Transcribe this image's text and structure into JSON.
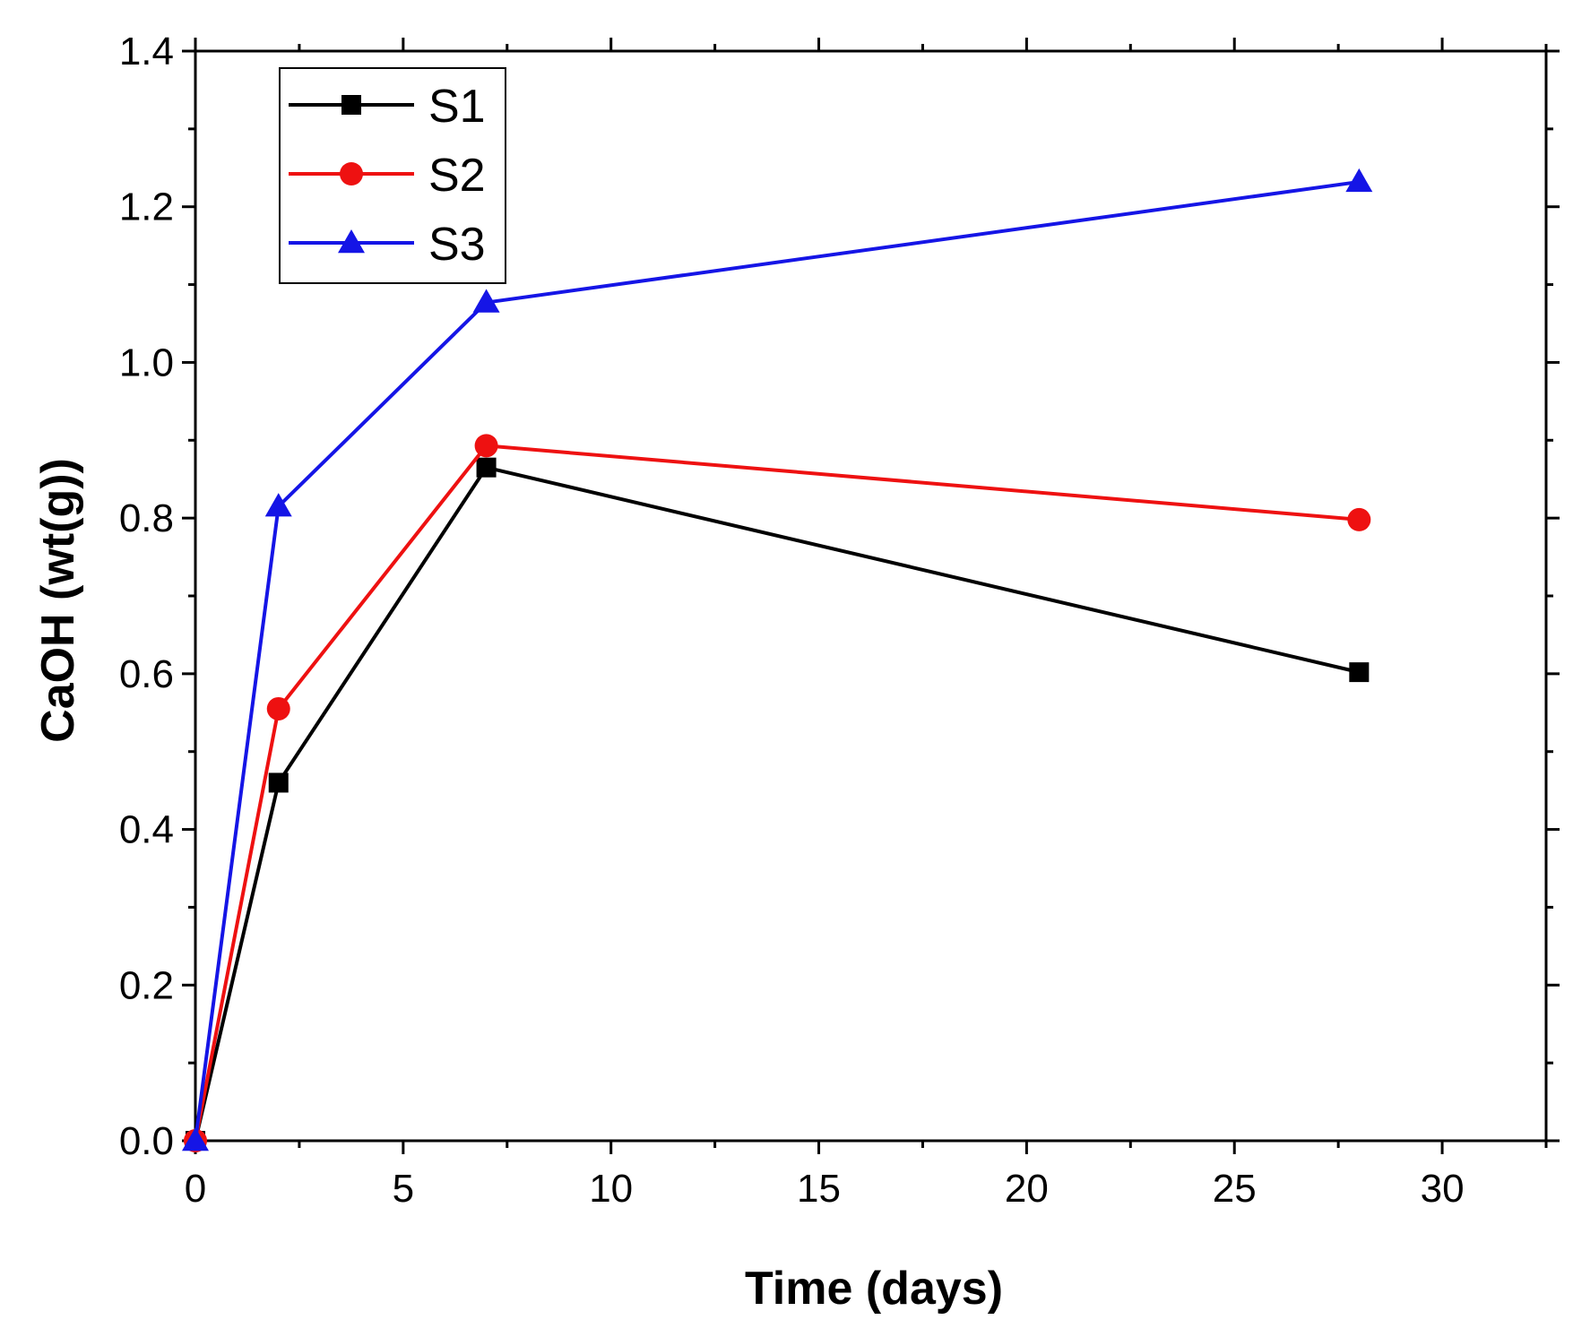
{
  "chart_data": {
    "type": "line",
    "title": "",
    "xlabel": "Time (days)",
    "ylabel": "CaOH (wt(g))",
    "xlim": [
      0,
      32.5
    ],
    "ylim": [
      0,
      1.4
    ],
    "xticks": [
      0,
      5,
      10,
      15,
      20,
      25,
      30
    ],
    "xtick_labels": [
      "0",
      "5",
      "10",
      "15",
      "20",
      "25",
      "30"
    ],
    "yticks": [
      0.0,
      0.2,
      0.4,
      0.6,
      0.8,
      1.0,
      1.2,
      1.4
    ],
    "ytick_labels": [
      "0.0",
      "0.2",
      "0.4",
      "0.6",
      "0.8",
      "1.0",
      "1.2",
      "1.4"
    ],
    "grid": false,
    "legend_position": "top-left",
    "x": [
      0,
      2,
      7,
      28
    ],
    "series": [
      {
        "name": "S1",
        "values": [
          0,
          0.46,
          0.865,
          0.602
        ],
        "color": "#000000",
        "marker": "square"
      },
      {
        "name": "S2",
        "values": [
          0,
          0.555,
          0.893,
          0.798
        ],
        "color": "#ee1111",
        "marker": "circle"
      },
      {
        "name": "S3",
        "values": [
          0,
          0.815,
          1.077,
          1.232
        ],
        "color": "#1515e6",
        "marker": "triangle"
      }
    ]
  }
}
